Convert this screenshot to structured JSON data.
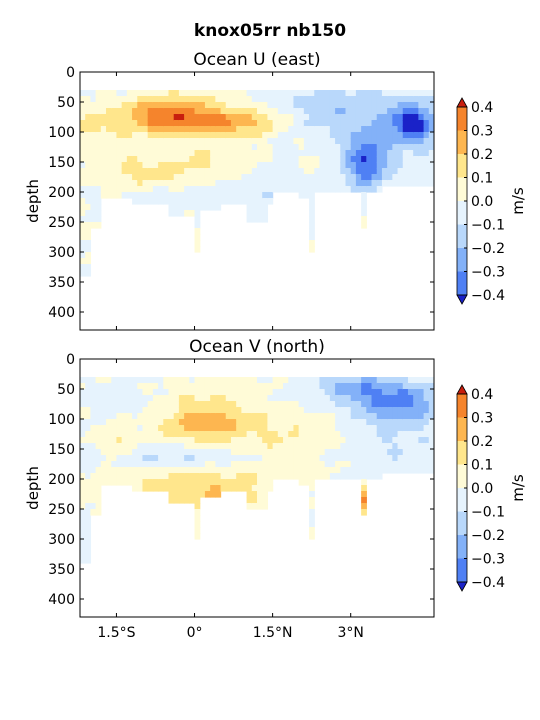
{
  "figure": {
    "suptitle": "knox05rr nb150"
  },
  "colors": {
    "levels": [
      -0.4,
      -0.3,
      -0.2,
      -0.1,
      0.0,
      0.1,
      0.2,
      0.3,
      0.4
    ],
    "bands": [
      "#2347f0",
      "#4f80f4",
      "#83b1f8",
      "#b9d8fb",
      "#e6f3fd",
      "#fffbd7",
      "#ffe68c",
      "#fdb650",
      "#f5842c",
      "#e8461c"
    ],
    "under": "#1a22c8",
    "over": "#c81e0e"
  },
  "chart_data": [
    {
      "type": "heatmap",
      "title": "Ocean U (east)",
      "ylabel": "depth",
      "xlabel": "",
      "xlim": [
        -2.2,
        4.6
      ],
      "ylim": [
        430,
        0
      ],
      "xticks": [
        -1.5,
        0,
        1.5,
        3
      ],
      "xticklabels": [
        "1.5°S",
        "0°",
        "1.5°N",
        "3°N"
      ],
      "yticks": [
        0,
        50,
        100,
        150,
        200,
        250,
        300,
        350,
        400
      ],
      "colorbar": {
        "label": "m/s",
        "ticks": [
          0.4,
          0.3,
          0.2,
          0.1,
          0.0,
          -0.1,
          -0.2,
          -0.3,
          -0.4
        ],
        "ticklabels": [
          "0.4",
          "0.3",
          "0.2",
          "0.1",
          "0.0",
          "−0.1",
          "−0.2",
          "−0.3",
          "−0.4"
        ]
      },
      "features": [
        {
          "x": -0.5,
          "y": 70,
          "sx": 0.7,
          "sy": 22,
          "v": 0.36
        },
        {
          "x": 0.6,
          "y": 85,
          "sx": 0.6,
          "sy": 15,
          "v": 0.2
        },
        {
          "x": 1.3,
          "y": 85,
          "sx": 0.4,
          "sy": 18,
          "v": 0.08
        },
        {
          "x": -1.9,
          "y": 85,
          "sx": 0.3,
          "sy": 12,
          "v": 0.1
        },
        {
          "x": -0.9,
          "y": 170,
          "sx": 0.6,
          "sy": 18,
          "v": 0.13
        },
        {
          "x": 0.5,
          "y": 150,
          "sx": 0.7,
          "sy": 22,
          "v": 0.12
        },
        {
          "x": 2.3,
          "y": 150,
          "sx": 0.3,
          "sy": 30,
          "v": 0.1
        },
        {
          "x": -1.5,
          "y": 130,
          "sx": 0.6,
          "sy": 40,
          "v": 0.04
        },
        {
          "x": 4.2,
          "y": 85,
          "sx": 0.35,
          "sy": 22,
          "v": -0.38
        },
        {
          "x": 3.3,
          "y": 150,
          "sx": 0.25,
          "sy": 30,
          "v": -0.3
        },
        {
          "x": 3.5,
          "y": 110,
          "sx": 0.9,
          "sy": 60,
          "v": -0.12
        },
        {
          "x": 2.6,
          "y": 70,
          "sx": 0.5,
          "sy": 25,
          "v": -0.1
        },
        {
          "x": 1.8,
          "y": 175,
          "sx": 0.8,
          "sy": 45,
          "v": -0.07
        },
        {
          "x": 0.0,
          "y": 200,
          "sx": 1.3,
          "sy": 25,
          "v": -0.05
        },
        {
          "x": 2.5,
          "y": 45,
          "sx": 1.0,
          "sy": 12,
          "v": -0.07
        },
        {
          "x": -1.2,
          "y": 45,
          "sx": 0.6,
          "sy": 12,
          "v": -0.05
        }
      ]
    },
    {
      "type": "heatmap",
      "title": "Ocean V (north)",
      "ylabel": "depth",
      "xlabel": "",
      "xlim": [
        -2.2,
        4.6
      ],
      "ylim": [
        430,
        0
      ],
      "xticks": [
        -1.5,
        0,
        1.5,
        3
      ],
      "xticklabels": [
        "1.5°S",
        "0°",
        "1.5°N",
        "3°N"
      ],
      "yticks": [
        0,
        50,
        100,
        150,
        200,
        250,
        300,
        350,
        400
      ],
      "colorbar": {
        "label": "m/s",
        "ticks": [
          0.4,
          0.3,
          0.2,
          0.1,
          0.0,
          -0.1,
          -0.2,
          -0.3,
          -0.4
        ],
        "ticklabels": [
          "0.4",
          "0.3",
          "0.2",
          "0.1",
          "0.0",
          "−0.1",
          "−0.2",
          "−0.3",
          "−0.4"
        ]
      },
      "features": [
        {
          "x": 0.2,
          "y": 110,
          "sx": 0.6,
          "sy": 18,
          "v": 0.25
        },
        {
          "x": 0.0,
          "y": 70,
          "sx": 0.9,
          "sy": 25,
          "v": 0.12
        },
        {
          "x": 0.0,
          "y": 220,
          "sx": 0.9,
          "sy": 30,
          "v": 0.2
        },
        {
          "x": -1.5,
          "y": 140,
          "sx": 0.2,
          "sy": 25,
          "v": 0.13
        },
        {
          "x": 1.8,
          "y": 140,
          "sx": 0.7,
          "sy": 40,
          "v": 0.1
        },
        {
          "x": 3.3,
          "y": 235,
          "sx": 0.08,
          "sy": 18,
          "v": 0.38
        },
        {
          "x": -1.9,
          "y": 220,
          "sx": 0.25,
          "sy": 25,
          "v": 0.08
        },
        {
          "x": -0.3,
          "y": 165,
          "sx": 1.3,
          "sy": 12,
          "v": -0.13
        },
        {
          "x": 3.9,
          "y": 70,
          "sx": 0.6,
          "sy": 22,
          "v": -0.3
        },
        {
          "x": 3.0,
          "y": 45,
          "sx": 0.5,
          "sy": 15,
          "v": -0.2
        },
        {
          "x": 3.8,
          "y": 130,
          "sx": 0.8,
          "sy": 50,
          "v": -0.1
        },
        {
          "x": -1.0,
          "y": 70,
          "sx": 0.7,
          "sy": 30,
          "v": -0.08
        },
        {
          "x": -2.0,
          "y": 260,
          "sx": 0.2,
          "sy": 60,
          "v": -0.05
        },
        {
          "x": 1.9,
          "y": 60,
          "sx": 0.4,
          "sy": 18,
          "v": -0.05
        }
      ]
    }
  ]
}
